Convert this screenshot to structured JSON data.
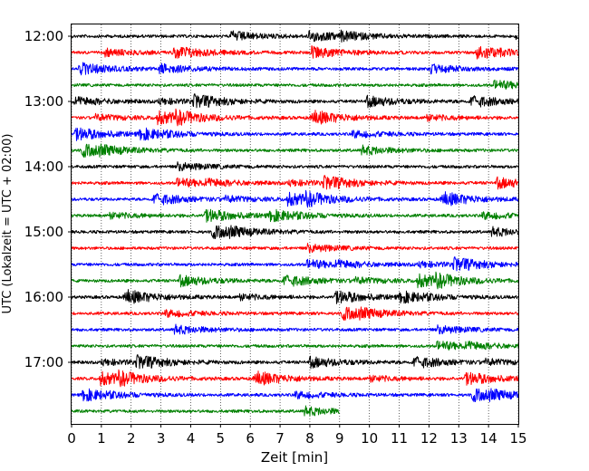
{
  "chart_data": {
    "type": "line",
    "title": "",
    "xlabel": "Zeit  [min]",
    "ylabel": "UTC (Lokalzeit = UTC + 02:00)",
    "xlim": [
      0,
      15
    ],
    "x_ticks": [
      "0",
      "1",
      "2",
      "3",
      "4",
      "5",
      "6",
      "7",
      "8",
      "9",
      "10",
      "11",
      "12",
      "13",
      "14",
      "15"
    ],
    "y_tick_labels": [
      "12:00",
      "13:00",
      "14:00",
      "15:00",
      "16:00",
      "17:00"
    ],
    "grid": "vertical dotted",
    "trace_interval_minutes": 15,
    "trace_colors": [
      "#000000",
      "#ff0000",
      "#0000ff",
      "#008000"
    ],
    "traces": [
      {
        "start": "12:00",
        "color": "#000000",
        "end_min": 15
      },
      {
        "start": "12:15",
        "color": "#ff0000",
        "end_min": 15
      },
      {
        "start": "12:30",
        "color": "#0000ff",
        "end_min": 15
      },
      {
        "start": "12:45",
        "color": "#008000",
        "end_min": 15
      },
      {
        "start": "13:00",
        "color": "#000000",
        "end_min": 15
      },
      {
        "start": "13:15",
        "color": "#ff0000",
        "end_min": 15
      },
      {
        "start": "13:30",
        "color": "#0000ff",
        "end_min": 15
      },
      {
        "start": "13:45",
        "color": "#008000",
        "end_min": 15
      },
      {
        "start": "14:00",
        "color": "#000000",
        "end_min": 15
      },
      {
        "start": "14:15",
        "color": "#ff0000",
        "end_min": 15
      },
      {
        "start": "14:30",
        "color": "#0000ff",
        "end_min": 15
      },
      {
        "start": "14:45",
        "color": "#008000",
        "end_min": 15
      },
      {
        "start": "15:00",
        "color": "#000000",
        "end_min": 15
      },
      {
        "start": "15:15",
        "color": "#ff0000",
        "end_min": 15
      },
      {
        "start": "15:30",
        "color": "#0000ff",
        "end_min": 15
      },
      {
        "start": "15:45",
        "color": "#008000",
        "end_min": 15
      },
      {
        "start": "16:00",
        "color": "#000000",
        "end_min": 15
      },
      {
        "start": "16:15",
        "color": "#ff0000",
        "end_min": 15
      },
      {
        "start": "16:30",
        "color": "#0000ff",
        "end_min": 15
      },
      {
        "start": "16:45",
        "color": "#008000",
        "end_min": 15
      },
      {
        "start": "17:00",
        "color": "#000000",
        "end_min": 15
      },
      {
        "start": "17:15",
        "color": "#ff0000",
        "end_min": 15
      },
      {
        "start": "17:30",
        "color": "#0000ff",
        "end_min": 15
      },
      {
        "start": "17:45",
        "color": "#008000",
        "end_min": 9
      }
    ]
  }
}
